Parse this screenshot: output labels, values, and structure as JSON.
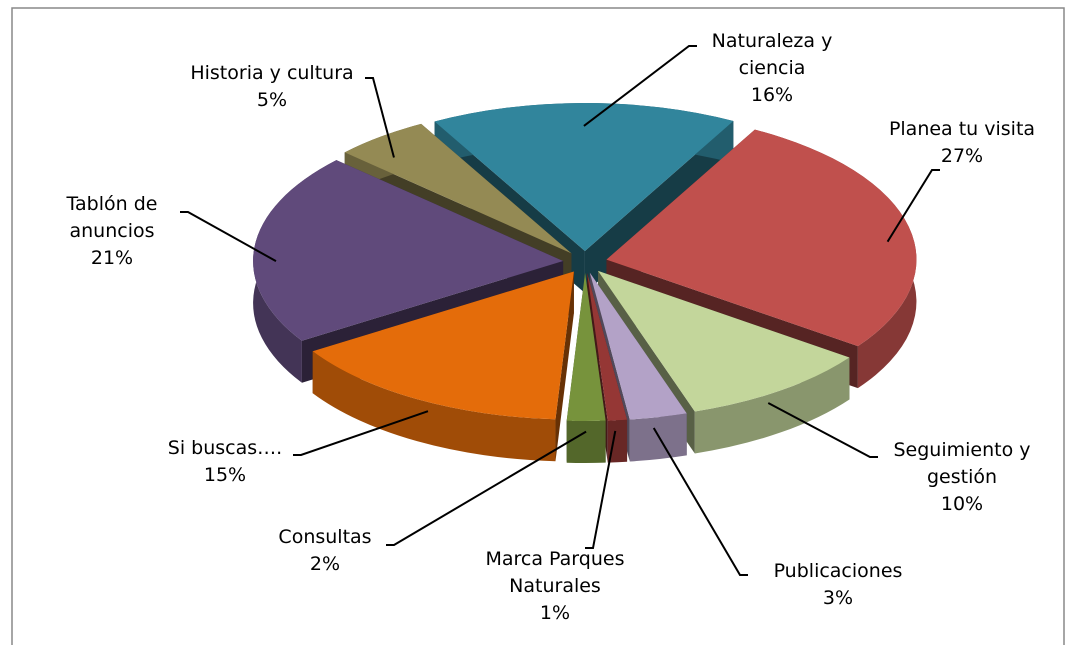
{
  "chart_data": {
    "type": "pie",
    "categories": [
      "Naturaleza y ciencia",
      "Planea tu visita",
      "Seguimiento y gestión",
      "Publicaciones",
      "Marca Parques Naturales",
      "Consultas",
      "Si buscas….",
      "Tablón de anuncios",
      "Historia y cultura"
    ],
    "values": [
      16,
      27,
      10,
      3,
      1,
      2,
      15,
      21,
      5
    ],
    "value_labels": [
      "16%",
      "27%",
      "10%",
      "3%",
      "1%",
      "2%",
      "15%",
      "21%",
      "5%"
    ],
    "colors": [
      "#31859c",
      "#c0504d",
      "#c3d69b",
      "#b3a2c7",
      "#953735",
      "#77933c",
      "#e46c0a",
      "#604a7b",
      "#948a54"
    ]
  }
}
